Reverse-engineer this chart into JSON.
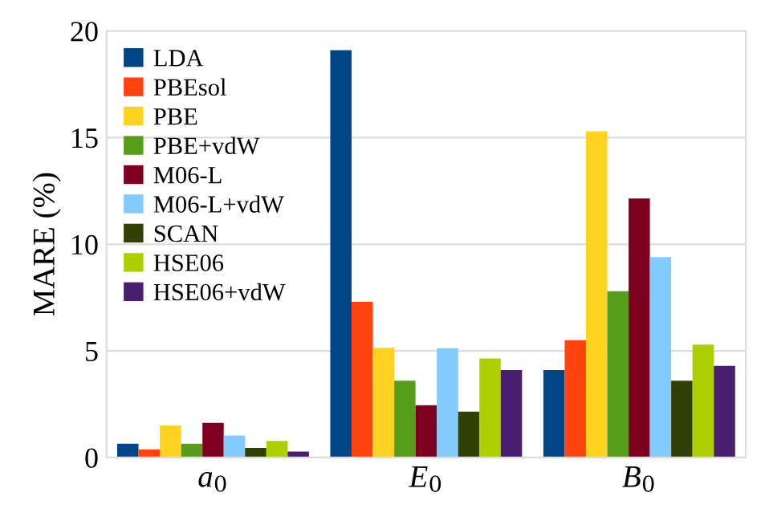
{
  "chart_data": {
    "type": "bar",
    "ylabel": "MARE (%)",
    "categories": [
      "a$_{0}$",
      "E$_{0}$",
      "B$_{0}$"
    ],
    "series": [
      {
        "name": "LDA",
        "color": "#004586",
        "values": [
          0.65,
          19.1,
          4.1
        ]
      },
      {
        "name": "PBEsol",
        "color": "#ff420e",
        "values": [
          0.38,
          7.3,
          5.5
        ]
      },
      {
        "name": "PBE",
        "color": "#ffd320",
        "values": [
          1.5,
          5.15,
          15.3
        ]
      },
      {
        "name": "PBE+vdW",
        "color": "#579d1c",
        "values": [
          0.65,
          3.6,
          7.8
        ]
      },
      {
        "name": "M06-L",
        "color": "#7e0021",
        "values": [
          1.63,
          2.45,
          12.15
        ]
      },
      {
        "name": "M06-L+vdW",
        "color": "#83caff",
        "values": [
          1.03,
          5.13,
          9.4
        ]
      },
      {
        "name": "SCAN",
        "color": "#314004",
        "values": [
          0.45,
          2.15,
          3.6
        ]
      },
      {
        "name": "HSE06",
        "color": "#aecf00",
        "values": [
          0.78,
          4.65,
          5.3
        ]
      },
      {
        "name": "HSE06+vdW",
        "color": "#4b1f6f",
        "values": [
          0.28,
          4.1,
          4.3
        ]
      }
    ],
    "ylim": [
      0,
      20
    ],
    "yticks": [
      0,
      5,
      10,
      15,
      20
    ],
    "grid": "y",
    "legend": "top left"
  }
}
